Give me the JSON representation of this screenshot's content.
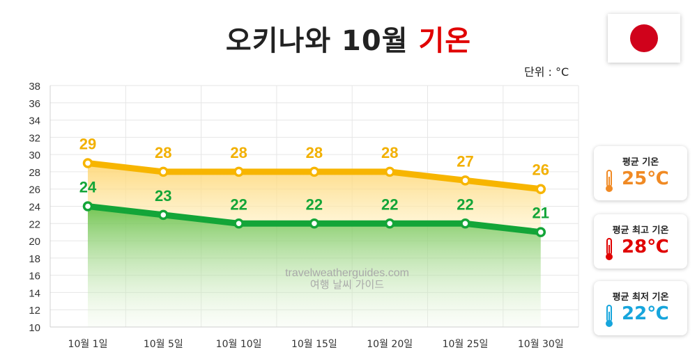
{
  "title": {
    "main": "오키나와 10월",
    "accent": "기온"
  },
  "unit_label": "단위 : °C",
  "watermark": {
    "line1": "travelweatherguides.com",
    "line2": "여행 날씨 가이드"
  },
  "flag": {
    "icon": "japan-flag-icon",
    "color": "#d0021b"
  },
  "chart_data": {
    "type": "line",
    "categories": [
      "10월 1일",
      "10월 5일",
      "10월 10일",
      "10월 15일",
      "10월 20일",
      "10월 25일",
      "10월 30일"
    ],
    "series": [
      {
        "values": [
          29,
          28,
          28,
          28,
          28,
          27,
          26
        ],
        "color": "#f7b500"
      },
      {
        "values": [
          24,
          23,
          22,
          22,
          22,
          22,
          21
        ],
        "color": "#13a538"
      }
    ],
    "ylim": [
      10,
      38
    ],
    "yticks": [
      10,
      12,
      14,
      16,
      18,
      20,
      22,
      24,
      26,
      28,
      30,
      32,
      34,
      36,
      38
    ],
    "grid": true
  },
  "cards": [
    {
      "label": "평균 기온",
      "value": "25℃",
      "color": "#f08a24",
      "icon": "thermometer-icon"
    },
    {
      "label": "평균 최고 기온",
      "value": "28℃",
      "color": "#e00000",
      "icon": "thermometer-icon"
    },
    {
      "label": "평균 최저 기온",
      "value": "22℃",
      "color": "#16a5dc",
      "icon": "thermometer-icon"
    }
  ]
}
